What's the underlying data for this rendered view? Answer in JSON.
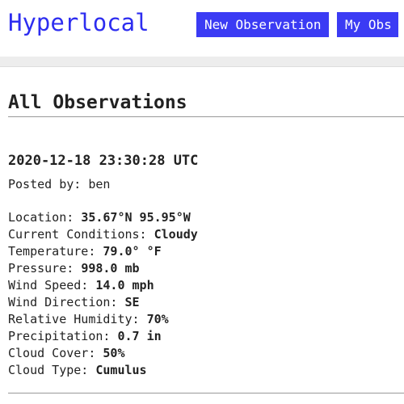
{
  "header": {
    "brand": "Hyperlocal",
    "new_observation_label": "New Observation",
    "my_obs_label": "My Obs"
  },
  "main": {
    "title": "All Observations",
    "observation": {
      "timestamp": "2020-12-18 23:30:28 UTC",
      "posted_by_label": "Posted by:",
      "posted_by": "ben",
      "fields": [
        {
          "label": "Location:",
          "value": "35.67°N 95.95°W"
        },
        {
          "label": "Current Conditions:",
          "value": "Cloudy"
        },
        {
          "label": "Temperature:",
          "value": "79.0° °F"
        },
        {
          "label": "Pressure:",
          "value": "998.0 mb"
        },
        {
          "label": "Wind Speed:",
          "value": "14.0 mph"
        },
        {
          "label": "Wind Direction:",
          "value": "SE"
        },
        {
          "label": "Relative Humidity:",
          "value": "70%"
        },
        {
          "label": "Precipitation:",
          "value": "0.7 in"
        },
        {
          "label": "Cloud Cover:",
          "value": "50%"
        },
        {
          "label": "Cloud Type:",
          "value": "Cumulus"
        }
      ]
    }
  },
  "colors": {
    "brand": "#2d2df0",
    "button_bg": "#3b3bf4",
    "band": "#ededed"
  }
}
